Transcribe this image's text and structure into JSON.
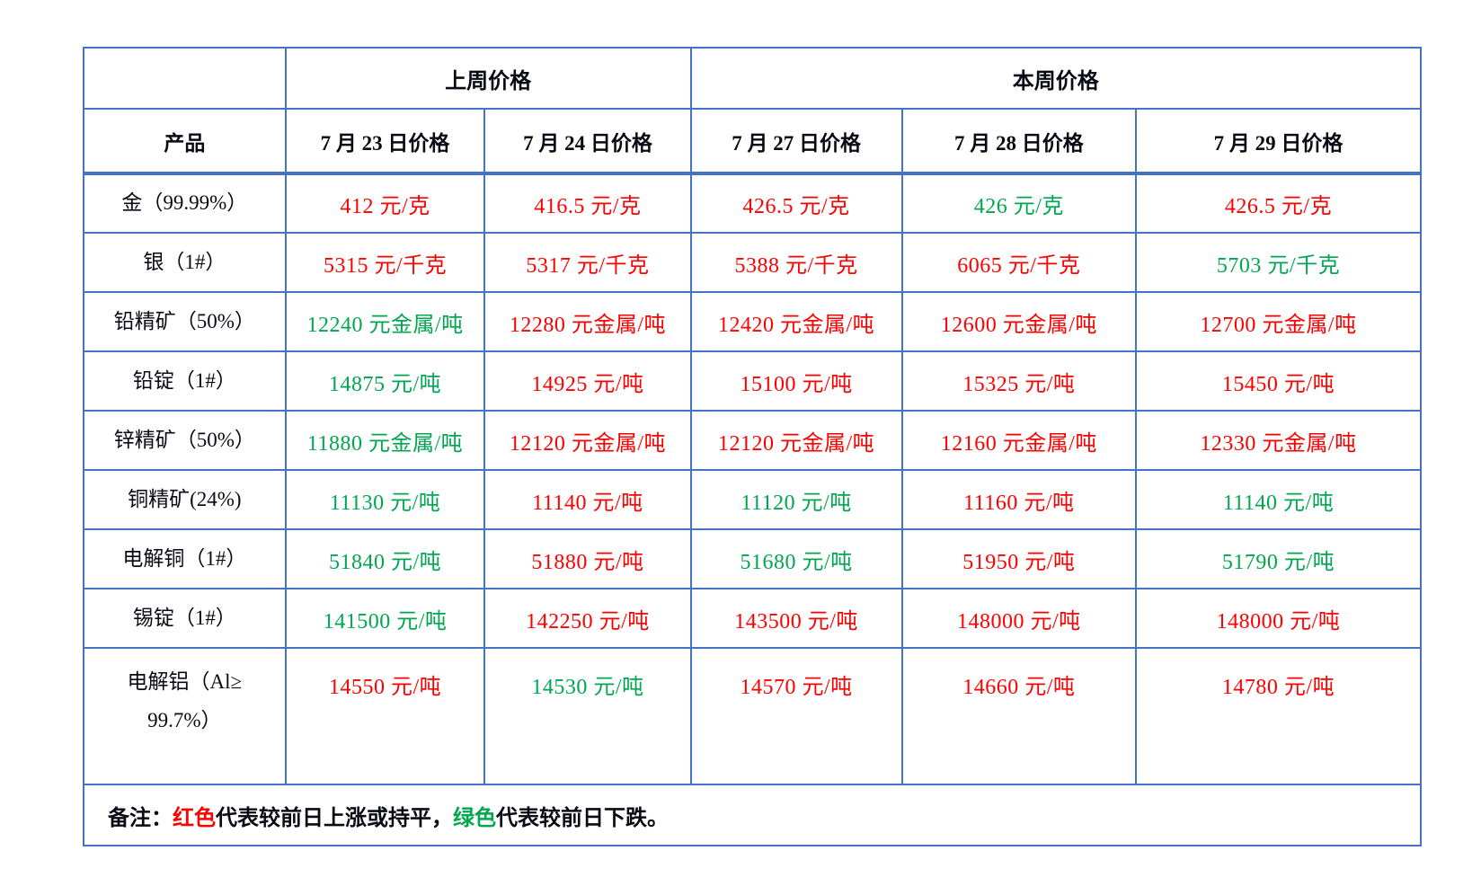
{
  "colors": {
    "red": "#fe0000",
    "green": "#00a650",
    "border": "#4472c4",
    "text": "#0a0a14",
    "background": "#ffffff"
  },
  "table": {
    "group_headers": {
      "last_week": "上周价格",
      "this_week": "本周价格"
    },
    "columns": [
      "产品",
      "7 月 23 日价格",
      "7 月 24 日价格",
      "7 月 27 日价格",
      "7 月 28 日价格",
      "7 月 29 日价格"
    ],
    "rows": [
      {
        "product": "金（99.99%）",
        "values": [
          {
            "text": "412 元/克",
            "color": "red"
          },
          {
            "text": "416.5 元/克",
            "color": "red"
          },
          {
            "text": "426.5 元/克",
            "color": "red"
          },
          {
            "text": "426 元/克",
            "color": "green"
          },
          {
            "text": "426.5 元/克",
            "color": "red"
          }
        ]
      },
      {
        "product": "银（1#）",
        "values": [
          {
            "text": "5315 元/千克",
            "color": "red"
          },
          {
            "text": "5317 元/千克",
            "color": "red"
          },
          {
            "text": "5388 元/千克",
            "color": "red"
          },
          {
            "text": "6065 元/千克",
            "color": "red"
          },
          {
            "text": "5703 元/千克",
            "color": "green"
          }
        ]
      },
      {
        "product": "铅精矿（50%）",
        "values": [
          {
            "text": "12240 元金属/吨",
            "color": "green"
          },
          {
            "text": "12280 元金属/吨",
            "color": "red"
          },
          {
            "text": "12420 元金属/吨",
            "color": "red"
          },
          {
            "text": "12600 元金属/吨",
            "color": "red"
          },
          {
            "text": "12700 元金属/吨",
            "color": "red"
          }
        ]
      },
      {
        "product": "铅锭（1#）",
        "values": [
          {
            "text": "14875 元/吨",
            "color": "green"
          },
          {
            "text": "14925 元/吨",
            "color": "red"
          },
          {
            "text": "15100 元/吨",
            "color": "red"
          },
          {
            "text": "15325 元/吨",
            "color": "red"
          },
          {
            "text": "15450 元/吨",
            "color": "red"
          }
        ]
      },
      {
        "product": "锌精矿（50%）",
        "values": [
          {
            "text": "11880 元金属/吨",
            "color": "green"
          },
          {
            "text": "12120 元金属/吨",
            "color": "red"
          },
          {
            "text": "12120 元金属/吨",
            "color": "red"
          },
          {
            "text": "12160 元金属/吨",
            "color": "red"
          },
          {
            "text": "12330 元金属/吨",
            "color": "red"
          }
        ]
      },
      {
        "product": "铜精矿(24%)",
        "values": [
          {
            "text": "11130 元/吨",
            "color": "green"
          },
          {
            "text": "11140 元/吨",
            "color": "red"
          },
          {
            "text": "11120 元/吨",
            "color": "green"
          },
          {
            "text": "11160 元/吨",
            "color": "red"
          },
          {
            "text": "11140 元/吨",
            "color": "green"
          }
        ]
      },
      {
        "product": "电解铜（1#）",
        "values": [
          {
            "text": "51840 元/吨",
            "color": "green"
          },
          {
            "text": "51880 元/吨",
            "color": "red"
          },
          {
            "text": "51680 元/吨",
            "color": "green"
          },
          {
            "text": "51950 元/吨",
            "color": "red"
          },
          {
            "text": "51790 元/吨",
            "color": "green"
          }
        ]
      },
      {
        "product": "锡锭（1#）",
        "values": [
          {
            "text": "141500 元/吨",
            "color": "green"
          },
          {
            "text": "142250 元/吨",
            "color": "red"
          },
          {
            "text": "143500 元/吨",
            "color": "red"
          },
          {
            "text": "148000 元/吨",
            "color": "red"
          },
          {
            "text": "148000 元/吨",
            "color": "red"
          }
        ]
      },
      {
        "product": "电解铝（Al≥\n99.7%）",
        "tall": true,
        "values": [
          {
            "text": "14550 元/吨",
            "color": "red"
          },
          {
            "text": "14530 元/吨",
            "color": "green"
          },
          {
            "text": "14570 元/吨",
            "color": "red"
          },
          {
            "text": "14660 元/吨",
            "color": "red"
          },
          {
            "text": "14780 元/吨",
            "color": "red"
          }
        ]
      }
    ]
  },
  "note": {
    "parts": [
      {
        "text": "备注：",
        "color": "black"
      },
      {
        "text": "红色",
        "color": "red"
      },
      {
        "text": "代表较前日上涨或持平，",
        "color": "black"
      },
      {
        "text": "绿色",
        "color": "green"
      },
      {
        "text": "代表较前日下跌。",
        "color": "black"
      }
    ]
  }
}
